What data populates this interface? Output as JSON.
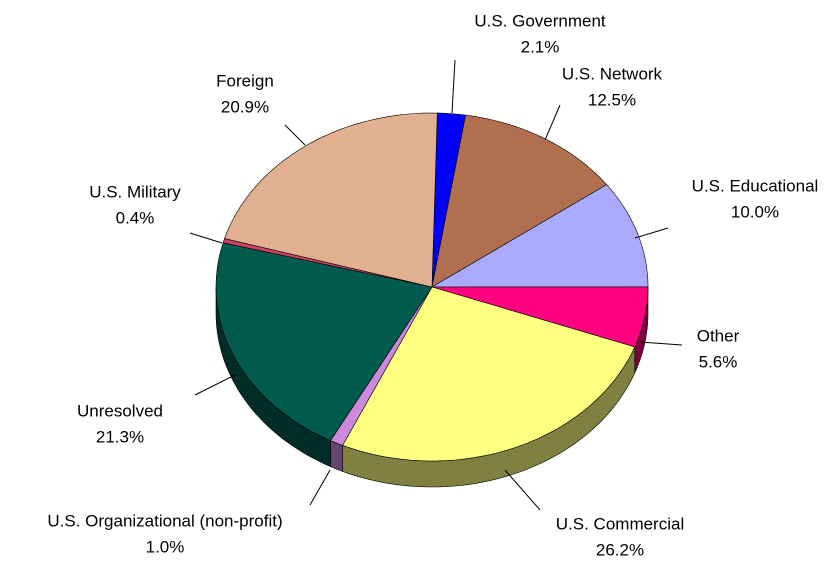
{
  "chart_data": {
    "type": "pie",
    "categories": [
      "U.S. Government",
      "U.S. Network",
      "U.S. Educational",
      "Other",
      "U.S. Commercial",
      "U.S. Organizational (non-profit)",
      "Unresolved",
      "U.S. Military",
      "Foreign"
    ],
    "values": [
      2.1,
      12.5,
      10.0,
      5.6,
      26.2,
      1.0,
      21.3,
      0.4,
      20.9
    ],
    "value_labels": [
      "2.1%",
      "12.5%",
      "10.0%",
      "5.6%",
      "26.2%",
      "1.0%",
      "21.3%",
      "0.4%",
      "20.9%"
    ],
    "colors": [
      "#0000ff",
      "#b07050",
      "#aaaaff",
      "#ff0080",
      "#ffff80",
      "#cc88dd",
      "#005a4e",
      "#d04060",
      "#e0b090"
    ]
  }
}
